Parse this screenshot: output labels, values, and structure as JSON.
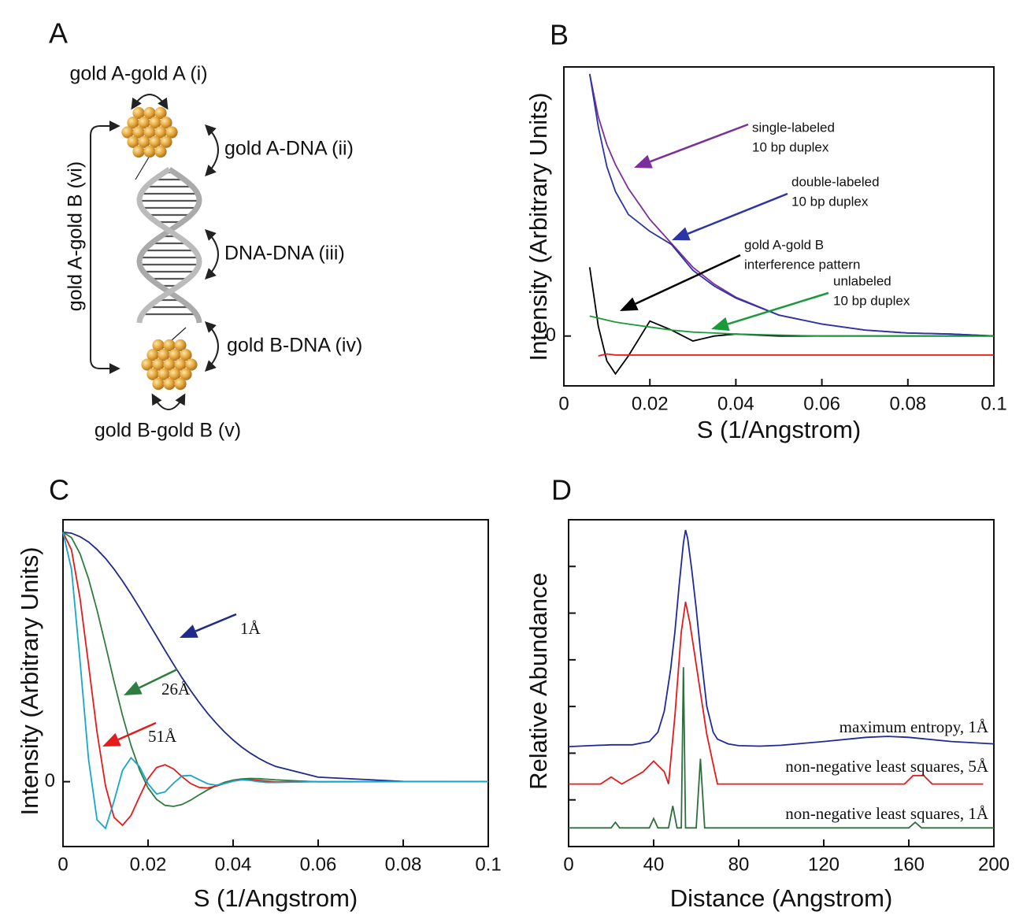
{
  "panel_a": {
    "panel_label": "A",
    "labels": [
      "gold A-gold A (i)",
      "gold A-DNA (ii)",
      "DNA-DNA (iii)",
      "gold B-DNA (iv)",
      "gold B-gold B (v)",
      "gold A-gold B (vi)"
    ]
  },
  "chart_data": [
    {
      "type": "line",
      "panel_label": "B",
      "xlabel": "S (1/Angstrom)",
      "ylabel": "Intensity (Arbitrary Units)",
      "xlim": [
        0,
        0.1
      ],
      "ylim": [
        -0.5,
        2.7
      ],
      "xticks": [
        0,
        0.02,
        0.04,
        0.06,
        0.08,
        0.1
      ],
      "yticks": [
        0
      ],
      "x": [
        0.006,
        0.008,
        0.01,
        0.012,
        0.015,
        0.02,
        0.025,
        0.03,
        0.035,
        0.04,
        0.05,
        0.06,
        0.07,
        0.08,
        0.09,
        0.1
      ],
      "series": [
        {
          "name": [
            "single-labeled",
            "10 bp duplex"
          ],
          "color": "#7b2f9a",
          "values": [
            2.63,
            2.2,
            1.92,
            1.72,
            1.48,
            1.17,
            0.93,
            0.69,
            0.52,
            0.39,
            0.21,
            0.12,
            0.06,
            0.03,
            0.02,
            0
          ]
        },
        {
          "name": [
            "double-labeled",
            "10 bp duplex"
          ],
          "color": "#2b35a3",
          "values": [
            2.63,
            2.1,
            1.7,
            1.45,
            1.22,
            1.05,
            0.92,
            0.66,
            0.5,
            0.38,
            0.21,
            0.12,
            0.06,
            0.03,
            0.02,
            0
          ]
        },
        {
          "name": [
            "gold A-gold B",
            "interference pattern"
          ],
          "color": "#000000",
          "values": [
            0.69,
            0.1,
            -0.25,
            -0.38,
            -0.2,
            0.15,
            0.06,
            -0.05,
            0,
            0.02,
            0,
            0,
            0,
            0,
            0,
            0
          ]
        },
        {
          "name": [
            "unlabeled",
            "10 bp duplex"
          ],
          "color": "#1a9a3a",
          "values": [
            0.2,
            0.18,
            0.16,
            0.14,
            0.12,
            0.09,
            0.06,
            0.04,
            0.03,
            0.02,
            0.01,
            0,
            0,
            0,
            0,
            0
          ]
        },
        {
          "color": "#e41a1c",
          "values": [
            null,
            -0.2,
            -0.18,
            -0.19,
            -0.19,
            -0.19,
            -0.19,
            -0.19,
            -0.19,
            -0.19,
            -0.19,
            -0.19,
            -0.19,
            -0.19,
            -0.19,
            -0.19
          ]
        }
      ]
    },
    {
      "type": "line",
      "panel_label": "C",
      "xlabel": "S (1/Angstrom)",
      "ylabel": "Intensity (Arbitrary Units)",
      "xlim": [
        0,
        0.1
      ],
      "ylim": [
        -0.26,
        1.05
      ],
      "xticks": [
        0,
        0.02,
        0.04,
        0.06,
        0.08,
        0.1
      ],
      "yticks": [
        0
      ],
      "x": [
        0,
        0.002,
        0.004,
        0.006,
        0.008,
        0.01,
        0.012,
        0.014,
        0.016,
        0.018,
        0.02,
        0.022,
        0.024,
        0.026,
        0.028,
        0.03,
        0.032,
        0.034,
        0.036,
        0.038,
        0.04,
        0.042,
        0.044,
        0.046,
        0.048,
        0.05,
        0.06,
        0.08,
        0.1
      ],
      "series": [
        {
          "name": "1Å",
          "color": "#1f2a8a",
          "values": [
            1,
            0.996,
            0.982,
            0.961,
            0.931,
            0.895,
            0.852,
            0.804,
            0.752,
            0.697,
            0.64,
            0.583,
            0.526,
            0.47,
            0.416,
            0.366,
            0.318,
            0.274,
            0.235,
            0.199,
            0.167,
            0.139,
            0.115,
            0.094,
            0.076,
            0.061,
            0.018,
            0.001,
            0
          ]
        },
        {
          "name": "26Å",
          "color": "#2e7d3f",
          "values": [
            1,
            0.978,
            0.914,
            0.814,
            0.688,
            0.547,
            0.402,
            0.265,
            0.145,
            0.047,
            -0.025,
            -0.071,
            -0.095,
            -0.099,
            -0.091,
            -0.074,
            -0.053,
            -0.033,
            -0.016,
            -0.002,
            0.0065,
            0.011,
            0.013,
            0.012,
            0.0099,
            0.0073,
            -0.0007,
            0,
            0
          ]
        },
        {
          "name": "51Å",
          "color": "#e41a1c",
          "values": [
            1,
            0.929,
            0.735,
            0.47,
            0.199,
            -0.017,
            -0.143,
            -0.175,
            -0.135,
            -0.06,
            0.012,
            0.057,
            0.068,
            0.051,
            0.02,
            -0.007,
            -0.023,
            -0.025,
            -0.018,
            -0.007,
            0.003,
            0.008,
            0.008,
            0.005,
            0.002,
            -0.001,
            0,
            0,
            0
          ]
        },
        {
          "color": "#16a7c9",
          "values": [
            1,
            0.851,
            0.485,
            0.091,
            -0.153,
            -0.187,
            -0.078,
            0.046,
            0.096,
            0.06,
            -0.008,
            -0.049,
            -0.041,
            -0.006,
            0.023,
            0.025,
            0.008,
            -0.008,
            -0.014,
            -0.007,
            0.002,
            0.007,
            0.005,
            0,
            -0.003,
            -0.003,
            0,
            0,
            0
          ]
        }
      ]
    },
    {
      "type": "line",
      "panel_label": "D",
      "xlabel": "Distance (Angstrom)",
      "ylabel": "Relative Abundance",
      "xlim": [
        0,
        200
      ],
      "ylim": [
        0,
        7
      ],
      "xticks": [
        0,
        40,
        80,
        120,
        160,
        200
      ],
      "yticks": [
        1,
        2,
        3,
        4,
        5,
        6
      ],
      "ytick_labels": false,
      "series": [
        {
          "name": "maximum entropy, 1Å",
          "color": "#1f2a9a",
          "x": [
            0,
            10,
            20,
            30,
            38,
            42,
            45,
            48,
            50,
            52,
            54,
            55,
            56,
            58,
            60,
            62,
            65,
            68,
            70,
            75,
            80,
            90,
            100,
            120,
            140,
            150,
            160,
            180,
            200
          ],
          "values": [
            2.14,
            2.16,
            2.18,
            2.18,
            2.25,
            2.45,
            2.9,
            3.8,
            4.6,
            5.6,
            6.5,
            6.78,
            6.6,
            5.9,
            5.1,
            4.2,
            3.0,
            2.45,
            2.3,
            2.2,
            2.16,
            2.15,
            2.17,
            2.25,
            2.34,
            2.36,
            2.34,
            2.25,
            2.2
          ]
        },
        {
          "name": "non-negative least squares, 5Å",
          "color": "#e41a1c",
          "x": [
            0,
            15,
            20,
            25,
            35,
            40,
            45,
            47,
            50,
            53,
            55,
            57,
            60,
            65,
            70,
            158,
            162,
            167,
            171,
            195
          ],
          "values": [
            1.34,
            1.34,
            1.49,
            1.34,
            1.6,
            1.83,
            1.6,
            1.34,
            2.8,
            4.6,
            5.24,
            4.8,
            3.9,
            2.4,
            1.34,
            1.34,
            1.52,
            1.52,
            1.34,
            1.34
          ]
        },
        {
          "name": "non-negative least squares, 1Å",
          "color": "#2e6e3f",
          "x": [
            0,
            20,
            22,
            24,
            38,
            40,
            42,
            47,
            49,
            51,
            53,
            54,
            55,
            60,
            62,
            64,
            160,
            163,
            166,
            200
          ],
          "values": [
            0.4,
            0.4,
            0.52,
            0.4,
            0.4,
            0.6,
            0.4,
            0.4,
            0.87,
            0.4,
            0.4,
            3.84,
            0.4,
            0.4,
            1.88,
            0.4,
            0.4,
            0.52,
            0.4,
            0.4
          ]
        }
      ]
    }
  ]
}
